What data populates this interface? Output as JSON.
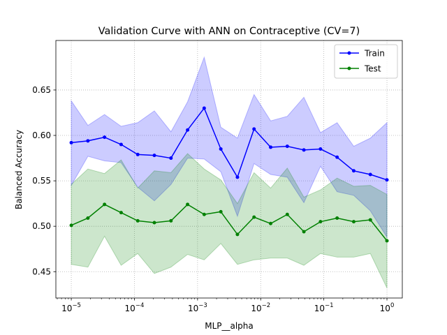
{
  "chart_data": {
    "type": "line",
    "title": "Validation Curve with ANN on Contraceptive (CV=7)",
    "xlabel": "MLP__alpha",
    "ylabel": "Balanced Accuracy",
    "xscale": "log",
    "xlim": [
      5.7e-06,
      1.75
    ],
    "ylim": [
      0.421,
      0.7045
    ],
    "xticks": [
      {
        "value": 1e-05,
        "base": "10",
        "exp": "−5"
      },
      {
        "value": 0.0001,
        "base": "10",
        "exp": "−4"
      },
      {
        "value": 0.001,
        "base": "10",
        "exp": "−3"
      },
      {
        "value": 0.01,
        "base": "10",
        "exp": "−2"
      },
      {
        "value": 0.1,
        "base": "10",
        "exp": "−1"
      },
      {
        "value": 1,
        "base": "10",
        "exp": "0"
      }
    ],
    "yticks": [
      {
        "value": 0.45,
        "label": "0.45"
      },
      {
        "value": 0.5,
        "label": "0.50"
      },
      {
        "value": 0.55,
        "label": "0.55"
      },
      {
        "value": 0.6,
        "label": "0.60"
      },
      {
        "value": 0.65,
        "label": "0.65"
      }
    ],
    "grid": true,
    "legend_position": "top-right",
    "x": [
      1e-05,
      1.833e-05,
      3.36e-05,
      6.158e-05,
      0.0001129,
      0.0002069,
      0.0003793,
      0.0006952,
      0.001274,
      0.002336,
      0.004281,
      0.007848,
      0.01438,
      0.02637,
      0.04833,
      0.08859,
      0.1624,
      0.2976,
      0.5456,
      1.0
    ],
    "series": [
      {
        "name": "Train",
        "color": "#0000ff",
        "band_color": "#0000ff",
        "values": [
          0.592,
          0.594,
          0.598,
          0.59,
          0.579,
          0.578,
          0.575,
          0.606,
          0.63,
          0.585,
          0.554,
          0.607,
          0.587,
          0.588,
          0.584,
          0.585,
          0.576,
          0.561,
          0.557,
          0.551
        ],
        "upper": [
          0.638,
          0.611,
          0.623,
          0.61,
          0.614,
          0.627,
          0.604,
          0.637,
          0.686,
          0.609,
          0.597,
          0.645,
          0.616,
          0.621,
          0.642,
          0.603,
          0.614,
          0.588,
          0.597,
          0.614
        ],
        "lower": [
          0.545,
          0.577,
          0.572,
          0.57,
          0.543,
          0.528,
          0.546,
          0.575,
          0.574,
          0.56,
          0.511,
          0.569,
          0.557,
          0.554,
          0.526,
          0.566,
          0.538,
          0.534,
          0.517,
          0.488
        ]
      },
      {
        "name": "Test",
        "color": "#008000",
        "band_color": "#008000",
        "values": [
          0.501,
          0.509,
          0.524,
          0.515,
          0.506,
          0.504,
          0.506,
          0.524,
          0.513,
          0.516,
          0.491,
          0.51,
          0.503,
          0.513,
          0.494,
          0.505,
          0.509,
          0.505,
          0.507,
          0.484
        ],
        "upper": [
          0.546,
          0.563,
          0.558,
          0.573,
          0.542,
          0.561,
          0.559,
          0.58,
          0.563,
          0.551,
          0.525,
          0.559,
          0.542,
          0.564,
          0.532,
          0.54,
          0.553,
          0.544,
          0.545,
          0.535
        ],
        "lower": [
          0.458,
          0.455,
          0.489,
          0.457,
          0.47,
          0.448,
          0.455,
          0.469,
          0.463,
          0.481,
          0.458,
          0.463,
          0.465,
          0.465,
          0.457,
          0.47,
          0.466,
          0.466,
          0.47,
          0.432
        ]
      }
    ]
  }
}
